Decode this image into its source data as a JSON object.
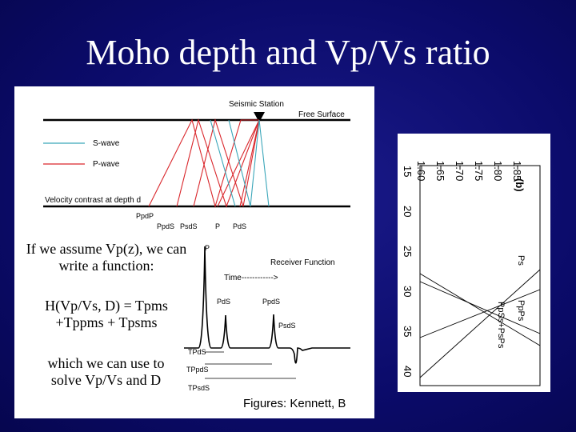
{
  "slide": {
    "title": "Moho depth and Vp/Vs ratio",
    "background_color": "#0b0b6a",
    "notes": {
      "assume": "If we assume Vp(z), we can write a function:",
      "function": "H(Vp/Vs, D) = Tpms +Tppms + Tpsms",
      "solve": "which we can use to solve Vp/Vs and D"
    },
    "credit": "Figures: Kennett, B"
  },
  "ray_diagram": {
    "station_label": "Seismic Station",
    "free_surface_label": "Free Surface",
    "legend_swave": "S-wave",
    "legend_pwave": "P-wave",
    "swave_color": "#3aa6b9",
    "pwave_color": "#d9262b",
    "contrast_label": "Velocity contrast at depth d",
    "phase_labels": [
      "PpdP",
      "PpdS",
      "PsdS",
      "P",
      "PdS"
    ]
  },
  "receiver_function": {
    "title": "Receiver Function",
    "time_label": "Time------------>",
    "peak_labels": [
      "P",
      "PdS",
      "PpdS",
      "PsdS"
    ],
    "time_labels": [
      "TPdS",
      "TPpdS",
      "TPsdS"
    ]
  },
  "panel_b": {
    "label": "(b)",
    "vpvs_ticks": [
      "1.60",
      "1.65",
      "1.70",
      "1.75",
      "1.80",
      "1.85"
    ],
    "depth_ticks": [
      "15",
      "20",
      "25",
      "30",
      "35",
      "40"
    ],
    "curve_labels": [
      "Ps",
      "PpPs",
      "PpSs+PsPs"
    ]
  }
}
